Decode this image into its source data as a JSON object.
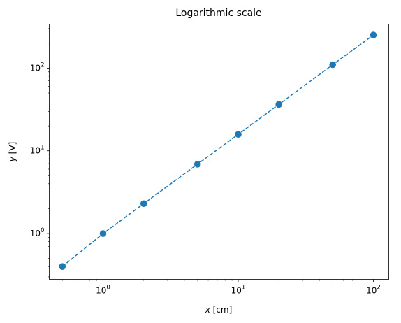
{
  "chart_data": {
    "type": "line",
    "title": "Logarithmic scale",
    "xlabel": {
      "var": "x",
      "unit": " [cm]"
    },
    "ylabel": {
      "var": "y",
      "unit": " [V]"
    },
    "xscale": "log",
    "yscale": "log",
    "xlim": [
      0.4,
      130
    ],
    "ylim": [
      0.28,
      340
    ],
    "x_ticks": [
      {
        "value": 1,
        "base": "10",
        "exp": "0"
      },
      {
        "value": 10,
        "base": "10",
        "exp": "1"
      },
      {
        "value": 100,
        "base": "10",
        "exp": "2"
      }
    ],
    "y_ticks": [
      {
        "value": 1,
        "base": "10",
        "exp": "0"
      },
      {
        "value": 10,
        "base": "10",
        "exp": "1"
      },
      {
        "value": 100,
        "base": "10",
        "exp": "2"
      }
    ],
    "grid": false,
    "series": [
      {
        "color": "#1f77b4",
        "linestyle": "dashed",
        "marker": "circle",
        "x": [
          0.5,
          1,
          2,
          5,
          10,
          20,
          50,
          100
        ],
        "y": [
          0.4,
          1,
          2.3,
          6.9,
          15.8,
          36.4,
          110,
          251
        ]
      }
    ]
  }
}
